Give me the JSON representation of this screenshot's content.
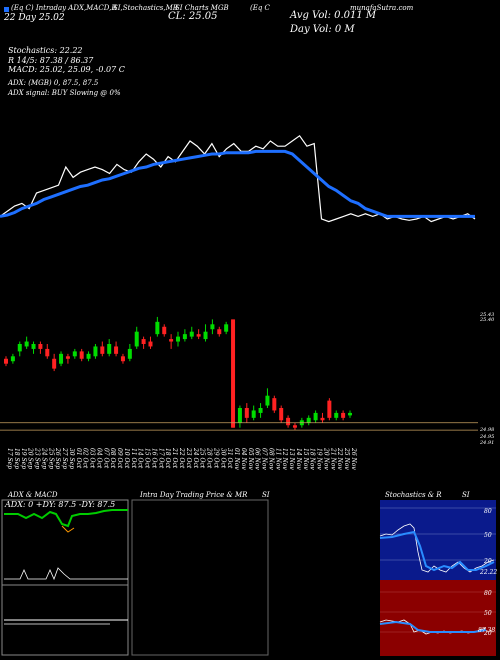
{
  "header": {
    "symbol_line": "(Eq C) Intraday ADX,MACD,R",
    "rsi_line": "SI,Stochastics,MR",
    "close_line": "SI Charts MGB",
    "munafa": "(Eq C",
    "source": "munafaSutra.com",
    "chg_line": "22  Day   25.02",
    "cl_line": "CL: 25.05",
    "avg_vol": "Avg Vol: 0.011  M",
    "day_vol": "Day Vol: 0   M",
    "stoch_label": "Stochastics: 22.22",
    "r_line": "R  14/5: 87.38 / 86.37",
    "macd_line": "MACD: 25.02, 25.09, -0.07 C",
    "adx_line": "ADX:                    (MGB) 0, 87.5, 87.5",
    "adx_signal": "ADX  signal:                     BUY Slowing @ 0%"
  },
  "price_labels": {
    "top1": "25.43",
    "top2": "25.40",
    "low1": "24.98",
    "low2": "24.95",
    "low3": "24.91"
  },
  "dates": [
    "17 Sep",
    "18 Sep",
    "19 Sep",
    "20 Sep",
    "23 Sep",
    "24 Sep",
    "25 Sep",
    "26 Sep",
    "27 Sep",
    "30 Sep",
    "01 Oct",
    "02 Oct",
    "03 Oct",
    "04 Oct",
    "07 Oct",
    "08 Oct",
    "09 Oct",
    "10 Oct",
    "11 Oct",
    "14 Oct",
    "15 Oct",
    "16 Oct",
    "17 Oct",
    "18 Oct",
    "21 Oct",
    "22 Oct",
    "23 Oct",
    "24 Oct",
    "25 Oct",
    "28 Oct",
    "29 Oct",
    "30 Oct",
    "31 Oct",
    "01 Nov",
    "04 Nov",
    "05 Nov",
    "06 Nov",
    "07 Nov",
    "08 Nov",
    "11 Nov",
    "12 Nov",
    "13 Nov",
    "14 Nov",
    "15 Nov",
    "18 Nov",
    "19 Nov",
    "20 Nov",
    "21 Nov",
    "22 Nov",
    "25 Nov",
    "26 Nov"
  ],
  "panels": {
    "adx_title": "ADX  & MACD",
    "adx_readout": "ADX: 0   +DY: 87.5   -DY: 87.5",
    "intraday_title": "Intra  Day Trading Price  & MR",
    "intraday_si": "SI",
    "stoch_title": "Stochastics & R",
    "stoch_si": "SI",
    "stoch_ticks": [
      "80",
      "50",
      "20"
    ],
    "stoch_value": "22.22",
    "rsi_ticks": [
      "80",
      "50",
      "20"
    ],
    "rsi_value": "87.38"
  },
  "colors": {
    "up": "#00dd00",
    "down": "#ff2222",
    "ma": "#1e6fff",
    "price": "#ffffff",
    "support": "#c8a060",
    "rsi_bg": "#8b0000",
    "stoch_bg": "#0a1a8c"
  },
  "chart_data": {
    "type": "candlestick",
    "price_scale": [
      24.91,
      25.43
    ],
    "candles": [
      {
        "open": 25.24,
        "close": 25.22,
        "high": 25.25,
        "low": 25.21
      },
      {
        "open": 25.23,
        "close": 25.25,
        "high": 25.26,
        "low": 25.22
      },
      {
        "open": 25.27,
        "close": 25.3,
        "high": 25.31,
        "low": 25.25
      },
      {
        "open": 25.29,
        "close": 25.31,
        "high": 25.33,
        "low": 25.28
      },
      {
        "open": 25.28,
        "close": 25.3,
        "high": 25.31,
        "low": 25.26
      },
      {
        "open": 25.3,
        "close": 25.28,
        "high": 25.31,
        "low": 25.26
      },
      {
        "open": 25.28,
        "close": 25.25,
        "high": 25.3,
        "low": 25.24
      },
      {
        "open": 25.24,
        "close": 25.2,
        "high": 25.26,
        "low": 25.19
      },
      {
        "open": 25.22,
        "close": 25.26,
        "high": 25.27,
        "low": 25.21
      },
      {
        "open": 25.25,
        "close": 25.24,
        "high": 25.26,
        "low": 25.22
      },
      {
        "open": 25.25,
        "close": 25.27,
        "high": 25.28,
        "low": 25.24
      },
      {
        "open": 25.27,
        "close": 25.24,
        "high": 25.28,
        "low": 25.23
      },
      {
        "open": 25.24,
        "close": 25.26,
        "high": 25.27,
        "low": 25.23
      },
      {
        "open": 25.25,
        "close": 25.29,
        "high": 25.3,
        "low": 25.24
      },
      {
        "open": 25.29,
        "close": 25.26,
        "high": 25.31,
        "low": 25.25
      },
      {
        "open": 25.26,
        "close": 25.3,
        "high": 25.32,
        "low": 25.25
      },
      {
        "open": 25.29,
        "close": 25.26,
        "high": 25.31,
        "low": 25.25
      },
      {
        "open": 25.25,
        "close": 25.23,
        "high": 25.26,
        "low": 25.22
      },
      {
        "open": 25.24,
        "close": 25.28,
        "high": 25.3,
        "low": 25.23
      },
      {
        "open": 25.29,
        "close": 25.35,
        "high": 25.37,
        "low": 25.28
      },
      {
        "open": 25.32,
        "close": 25.3,
        "high": 25.33,
        "low": 25.28
      },
      {
        "open": 25.31,
        "close": 25.29,
        "high": 25.33,
        "low": 25.28
      },
      {
        "open": 25.34,
        "close": 25.39,
        "high": 25.41,
        "low": 25.33
      },
      {
        "open": 25.37,
        "close": 25.34,
        "high": 25.38,
        "low": 25.33
      },
      {
        "open": 25.32,
        "close": 25.31,
        "high": 25.34,
        "low": 25.28
      },
      {
        "open": 25.31,
        "close": 25.33,
        "high": 25.35,
        "low": 25.29
      },
      {
        "open": 25.32,
        "close": 25.34,
        "high": 25.36,
        "low": 25.31
      },
      {
        "open": 25.33,
        "close": 25.35,
        "high": 25.37,
        "low": 25.32
      },
      {
        "open": 25.34,
        "close": 25.33,
        "high": 25.36,
        "low": 25.32
      },
      {
        "open": 25.32,
        "close": 25.35,
        "high": 25.38,
        "low": 25.31
      },
      {
        "open": 25.36,
        "close": 25.38,
        "high": 25.4,
        "low": 25.34
      },
      {
        "open": 25.36,
        "close": 25.34,
        "high": 25.37,
        "low": 25.33
      },
      {
        "open": 25.35,
        "close": 25.38,
        "high": 25.39,
        "low": 25.34
      },
      {
        "open": 25.4,
        "close": 24.96,
        "high": 25.4,
        "low": 24.96
      },
      {
        "open": 24.98,
        "close": 25.04,
        "high": 25.05,
        "low": 24.96
      },
      {
        "open": 25.04,
        "close": 25.0,
        "high": 25.06,
        "low": 24.98
      },
      {
        "open": 25.0,
        "close": 25.03,
        "high": 25.05,
        "low": 24.99
      },
      {
        "open": 25.02,
        "close": 25.04,
        "high": 25.06,
        "low": 25.0
      },
      {
        "open": 25.05,
        "close": 25.09,
        "high": 25.12,
        "low": 25.04
      },
      {
        "open": 25.08,
        "close": 25.03,
        "high": 25.09,
        "low": 25.02
      },
      {
        "open": 25.04,
        "close": 24.99,
        "high": 25.05,
        "low": 24.98
      },
      {
        "open": 25.0,
        "close": 24.97,
        "high": 25.01,
        "low": 24.96
      },
      {
        "open": 24.97,
        "close": 24.96,
        "high": 24.98,
        "low": 24.95
      },
      {
        "open": 24.97,
        "close": 24.99,
        "high": 25.0,
        "low": 24.96
      },
      {
        "open": 24.98,
        "close": 25.0,
        "high": 25.01,
        "low": 24.97
      },
      {
        "open": 24.99,
        "close": 25.02,
        "high": 25.03,
        "low": 24.98
      },
      {
        "open": 25.0,
        "close": 24.99,
        "high": 25.02,
        "low": 24.98
      },
      {
        "open": 25.07,
        "close": 25.0,
        "high": 25.08,
        "low": 24.99
      },
      {
        "open": 25.0,
        "close": 25.02,
        "high": 25.03,
        "low": 24.99
      },
      {
        "open": 25.02,
        "close": 25.0,
        "high": 25.03,
        "low": 24.99
      },
      {
        "open": 25.01,
        "close": 25.02,
        "high": 25.03,
        "low": 25.0
      }
    ],
    "price_line_scale": [
      0,
      100
    ],
    "price_line": [
      22,
      26,
      30,
      32,
      28,
      40,
      42,
      44,
      46,
      60,
      52,
      56,
      58,
      60,
      58,
      55,
      62,
      58,
      56,
      64,
      70,
      66,
      60,
      68,
      64,
      72,
      80,
      76,
      70,
      78,
      68,
      74,
      78,
      72,
      72,
      76,
      74,
      80,
      76,
      76,
      80,
      84,
      76,
      78,
      20,
      18,
      20,
      22,
      24,
      22,
      24,
      22,
      24,
      20,
      22,
      20,
      19,
      20,
      22,
      18,
      20,
      22,
      20,
      22,
      24,
      20
    ],
    "ma_line": [
      22,
      23,
      25,
      28,
      30,
      32,
      35,
      37,
      39,
      41,
      43,
      45,
      46,
      48,
      50,
      51,
      53,
      55,
      57,
      59,
      60,
      62,
      63,
      64,
      65,
      66,
      67,
      68,
      69,
      70,
      70,
      71,
      71,
      71,
      71,
      72,
      72,
      72,
      72,
      72,
      70,
      65,
      60,
      55,
      50,
      45,
      42,
      38,
      34,
      32,
      28,
      26,
      24,
      22,
      22,
      22,
      22,
      22,
      22,
      22,
      22,
      22,
      22,
      22,
      22,
      22
    ],
    "support_levels": [
      24.98,
      24.95
    ],
    "adx": {
      "adx": 0,
      "plus_di": 87.5,
      "minus_di": 87.5
    },
    "stochastic": 22.22,
    "rsi": 87.38
  }
}
